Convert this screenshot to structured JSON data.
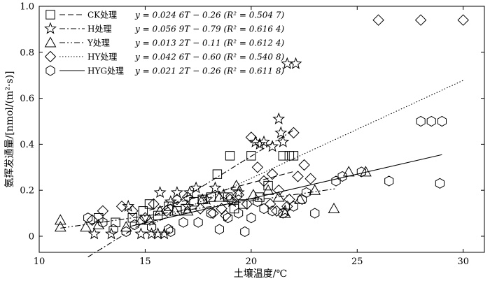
{
  "chart_data": {
    "type": "scatter",
    "xlabel": "土壤温度/℃",
    "ylabel": "氨挥发通量/[nmol/(m²·s)]",
    "xlim": [
      10,
      31
    ],
    "ylim": [
      -0.07,
      1.0
    ],
    "xticks": [
      "10",
      "15",
      "20",
      "25",
      "30"
    ],
    "yticks": [
      "0",
      "0.2",
      "0.4",
      "0.6",
      "0.8",
      "1.0"
    ],
    "legend_position": "top-left",
    "series": [
      {
        "name": "CK处理",
        "equation": "y = 0.024 6T − 0.26 (R² = 0.504 7)",
        "marker": "square",
        "line_style": "dashed",
        "fit": {
          "slope": 0.0246,
          "intercept": -0.26,
          "x_range": [
            15.2,
            22.0
          ]
        },
        "points": [
          [
            12.8,
            0.08
          ],
          [
            13.6,
            0.06
          ],
          [
            14.4,
            0.08
          ],
          [
            14.9,
            0.11
          ],
          [
            15.2,
            0.14
          ],
          [
            15.6,
            0.09
          ],
          [
            16.1,
            0.13
          ],
          [
            16.5,
            0.11
          ],
          [
            16.9,
            0.12
          ],
          [
            17.3,
            0.15
          ],
          [
            17.7,
            0.16
          ],
          [
            18.1,
            0.17
          ],
          [
            18.4,
            0.27
          ],
          [
            18.9,
            0.17
          ],
          [
            19.2,
            0.12
          ],
          [
            19.6,
            0.14
          ],
          [
            20.0,
            0.35
          ],
          [
            20.4,
            0.17
          ],
          [
            20.8,
            0.22
          ],
          [
            21.5,
            0.35
          ],
          [
            21.8,
            0.35
          ],
          [
            22.0,
            0.35
          ],
          [
            19.0,
            0.35
          ]
        ]
      },
      {
        "name": "H处理",
        "equation": "y = 0.056 9T − 0.79 (R² = 0.616 4)",
        "marker": "star",
        "line_style": "dash-dot",
        "fit": {
          "slope": 0.0569,
          "intercept": -0.79,
          "x_range": [
            12.3,
            22.0
          ]
        },
        "points": [
          [
            12.6,
            0.01
          ],
          [
            13.4,
            0.01
          ],
          [
            14.8,
            0.01
          ],
          [
            15.3,
            0.01
          ],
          [
            15.6,
            0.01
          ],
          [
            15.9,
            0.01
          ],
          [
            15.7,
            0.19
          ],
          [
            16.5,
            0.19
          ],
          [
            17.1,
            0.19
          ],
          [
            17.4,
            0.21
          ],
          [
            17.9,
            0.16
          ],
          [
            18.3,
            0.21
          ],
          [
            18.7,
            0.18
          ],
          [
            19.1,
            0.15
          ],
          [
            19.4,
            0.19
          ],
          [
            20.2,
            0.41
          ],
          [
            20.4,
            0.4
          ],
          [
            20.6,
            0.41
          ],
          [
            21.0,
            0.39
          ],
          [
            21.3,
            0.51
          ],
          [
            21.4,
            0.45
          ],
          [
            21.5,
            0.41
          ],
          [
            21.7,
            0.75
          ],
          [
            22.1,
            0.75
          ],
          [
            21.6,
            0.11
          ],
          [
            14.2,
            0.13
          ],
          [
            16.2,
            0.15
          ],
          [
            17.0,
            0.13
          ]
        ]
      },
      {
        "name": "Y处理",
        "equation": "y = 0.013 2T − 0.11 (R² = 0.612 4)",
        "marker": "triangle",
        "line_style": "dash-dot-dot",
        "fit": {
          "slope": 0.0132,
          "intercept": -0.11,
          "x_range": [
            11.0,
            24.0
          ]
        },
        "points": [
          [
            11.0,
            0.04
          ],
          [
            11.0,
            0.07
          ],
          [
            12.2,
            0.04
          ],
          [
            12.8,
            0.05
          ],
          [
            14.1,
            0.04
          ],
          [
            14.8,
            0.07
          ],
          [
            15.7,
            0.11
          ],
          [
            16.4,
            0.11
          ],
          [
            17.0,
            0.11
          ],
          [
            17.7,
            0.16
          ],
          [
            18.5,
            0.17
          ],
          [
            19.3,
            0.22
          ],
          [
            20.1,
            0.18
          ],
          [
            20.8,
            0.2
          ],
          [
            21.3,
            0.17
          ],
          [
            21.6,
            0.1
          ],
          [
            22.3,
            0.16
          ],
          [
            23.0,
            0.2
          ],
          [
            23.9,
            0.12
          ],
          [
            24.6,
            0.28
          ],
          [
            25.4,
            0.28
          ],
          [
            15.2,
            0.07
          ]
        ]
      },
      {
        "name": "HY处理",
        "equation": "y = 0.042 6T − 0.60 (R² = 0.540 8)",
        "marker": "diamond",
        "line_style": "dotted",
        "fit": {
          "slope": 0.0426,
          "intercept": -0.6,
          "x_range": [
            15.2,
            30.0
          ]
        },
        "points": [
          [
            12.5,
            0.07
          ],
          [
            13.0,
            0.11
          ],
          [
            13.9,
            0.13
          ],
          [
            14.4,
            0.11
          ],
          [
            15.0,
            0.08
          ],
          [
            15.4,
            0.14
          ],
          [
            16.0,
            0.11
          ],
          [
            16.5,
            0.16
          ],
          [
            17.0,
            0.17
          ],
          [
            17.6,
            0.12
          ],
          [
            18.2,
            0.1
          ],
          [
            18.6,
            0.12
          ],
          [
            19.0,
            0.16
          ],
          [
            19.4,
            0.18
          ],
          [
            19.8,
            0.14
          ],
          [
            20.0,
            0.43
          ],
          [
            20.3,
            0.3
          ],
          [
            20.6,
            0.24
          ],
          [
            21.0,
            0.27
          ],
          [
            21.3,
            0.2
          ],
          [
            21.7,
            0.13
          ],
          [
            22.0,
            0.45
          ],
          [
            22.2,
            0.26
          ],
          [
            22.5,
            0.31
          ],
          [
            22.8,
            0.25
          ],
          [
            21.2,
            0.11
          ],
          [
            21.8,
            0.16
          ],
          [
            26.0,
            0.94
          ],
          [
            28.0,
            0.94
          ],
          [
            30.0,
            0.94
          ],
          [
            18.8,
            0.09
          ],
          [
            20.9,
            0.14
          ]
        ]
      },
      {
        "name": "HYG处理",
        "equation": "y = 0.021 2T − 0.26 (R² = 0.611 8)",
        "marker": "hexagon",
        "line_style": "solid",
        "fit": {
          "slope": 0.0212,
          "intercept": -0.26,
          "x_range": [
            14.3,
            29.0
          ]
        },
        "points": [
          [
            12.3,
            0.08
          ],
          [
            13.0,
            0.06
          ],
          [
            13.5,
            0.03
          ],
          [
            14.1,
            0.02
          ],
          [
            14.5,
            0.05
          ],
          [
            15.3,
            0.04
          ],
          [
            16.1,
            0.03
          ],
          [
            16.8,
            0.06
          ],
          [
            17.5,
            0.06
          ],
          [
            18.1,
            0.1
          ],
          [
            18.5,
            0.03
          ],
          [
            18.9,
            0.08
          ],
          [
            19.4,
            0.1
          ],
          [
            19.7,
            0.02
          ],
          [
            20.0,
            0.08
          ],
          [
            20.3,
            0.15
          ],
          [
            20.6,
            0.12
          ],
          [
            21.0,
            0.11
          ],
          [
            21.5,
            0.1
          ],
          [
            22.0,
            0.13
          ],
          [
            22.6,
            0.19
          ],
          [
            23.0,
            0.1
          ],
          [
            24.0,
            0.24
          ],
          [
            25.2,
            0.28
          ],
          [
            26.5,
            0.24
          ],
          [
            28.0,
            0.5
          ],
          [
            28.5,
            0.5
          ],
          [
            29.0,
            0.5
          ],
          [
            28.9,
            0.23
          ],
          [
            22.4,
            0.16
          ],
          [
            24.3,
            0.26
          ],
          [
            16.2,
            0.02
          ]
        ]
      }
    ]
  }
}
